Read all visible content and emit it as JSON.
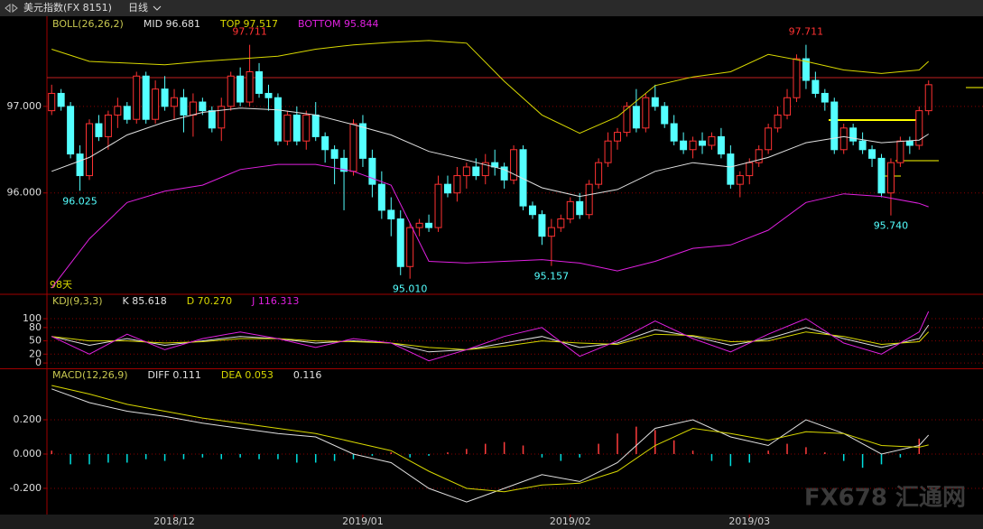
{
  "header": {
    "symbol": "美元指数(FX 8151)",
    "period": "日线"
  },
  "watermark": "FX678 汇通网",
  "chart_data": [
    {
      "type": "candlestick",
      "indicator": "BOLL(26,26,2)",
      "note": "98天",
      "xlim": [
        -0.5,
        93.6
      ],
      "ylim": [
        94.84,
        98.02
      ],
      "yticks": [
        {
          "value": 97,
          "label": "97.000"
        },
        {
          "value": 96,
          "label": "96.000"
        }
      ],
      "up_color": "#ff3232",
      "down_color": "#54ffff",
      "open": [
        96.95,
        97.15,
        97.0,
        96.45,
        96.2,
        96.8,
        96.65,
        96.9,
        97.0,
        96.85,
        97.35,
        96.85,
        97.2,
        97.0,
        97.1,
        96.9,
        97.05,
        96.95,
        96.75,
        97.0,
        97.35,
        97.05,
        97.4,
        97.15,
        97.1,
        96.6,
        96.9,
        96.6,
        96.9,
        96.65,
        96.5,
        96.4,
        96.25,
        96.8,
        96.4,
        96.1,
        95.8,
        95.7,
        95.15,
        95.6,
        95.65,
        95.6,
        96.1,
        96.0,
        96.2,
        96.3,
        96.2,
        96.35,
        96.3,
        96.15,
        96.5,
        95.85,
        95.75,
        95.5,
        95.6,
        95.7,
        95.9,
        95.75,
        96.1,
        96.35,
        96.6,
        96.7,
        97.0,
        96.75,
        97.1,
        97.0,
        96.8,
        96.6,
        96.5,
        96.6,
        96.55,
        96.65,
        96.45,
        96.1,
        96.2,
        96.35,
        96.5,
        96.75,
        96.9,
        97.1,
        97.55,
        97.3,
        97.15,
        97.05,
        96.5,
        96.75,
        96.6,
        96.5,
        96.4,
        96.0,
        96.35,
        96.6,
        96.55,
        96.95
      ],
      "high": [
        97.25,
        97.2,
        97.05,
        96.55,
        96.85,
        96.9,
        96.95,
        97.1,
        97.05,
        97.4,
        97.4,
        97.3,
        97.35,
        97.2,
        97.2,
        97.15,
        97.1,
        97.0,
        97.1,
        97.4,
        97.45,
        97.711,
        97.5,
        97.25,
        97.15,
        96.95,
        97.0,
        96.95,
        97.05,
        96.7,
        96.55,
        96.5,
        96.85,
        96.9,
        96.5,
        96.25,
        95.95,
        95.8,
        95.65,
        95.7,
        95.75,
        96.2,
        96.2,
        96.3,
        96.35,
        96.4,
        96.45,
        96.5,
        96.35,
        96.55,
        96.55,
        95.9,
        95.8,
        95.7,
        95.75,
        95.95,
        96.0,
        96.15,
        96.4,
        96.7,
        96.75,
        97.05,
        97.2,
        97.15,
        97.25,
        97.05,
        96.9,
        96.7,
        96.65,
        96.7,
        96.7,
        96.75,
        96.55,
        96.25,
        96.4,
        96.55,
        96.8,
        97.0,
        97.2,
        97.6,
        97.711,
        97.4,
        97.2,
        97.1,
        96.8,
        96.8,
        96.7,
        96.55,
        96.45,
        96.4,
        96.65,
        96.65,
        97.0,
        97.3
      ],
      "low": [
        96.9,
        96.95,
        96.4,
        96.025,
        96.15,
        96.6,
        96.5,
        96.75,
        96.8,
        96.8,
        96.8,
        96.8,
        96.95,
        96.85,
        96.7,
        96.65,
        96.9,
        96.7,
        96.6,
        96.95,
        97.0,
        97.0,
        97.1,
        96.95,
        96.55,
        96.55,
        96.55,
        96.5,
        96.6,
        96.35,
        96.1,
        95.8,
        96.2,
        96.3,
        95.95,
        95.7,
        95.5,
        95.05,
        95.01,
        95.5,
        95.55,
        95.55,
        95.95,
        95.9,
        96.05,
        96.15,
        96.1,
        96.2,
        96.05,
        96.1,
        95.8,
        95.7,
        95.4,
        95.157,
        95.55,
        95.65,
        95.7,
        95.7,
        96.05,
        96.3,
        96.5,
        96.65,
        96.7,
        96.7,
        96.95,
        96.75,
        96.55,
        96.45,
        96.4,
        96.45,
        96.5,
        96.4,
        96.05,
        95.95,
        96.1,
        96.3,
        96.45,
        96.7,
        96.85,
        97.05,
        97.2,
        97.1,
        96.95,
        96.45,
        96.45,
        96.55,
        96.45,
        96.3,
        95.95,
        95.74,
        96.3,
        96.45,
        96.5,
        96.9
      ],
      "close": [
        97.15,
        97.0,
        96.45,
        96.2,
        96.8,
        96.65,
        96.9,
        97.0,
        96.85,
        97.35,
        96.85,
        97.2,
        97.0,
        97.1,
        96.9,
        97.05,
        96.95,
        96.75,
        97.0,
        97.35,
        97.05,
        97.4,
        97.15,
        97.1,
        96.6,
        96.9,
        96.6,
        96.9,
        96.65,
        96.5,
        96.4,
        96.25,
        96.8,
        96.4,
        96.1,
        95.8,
        95.7,
        95.15,
        95.6,
        95.65,
        95.6,
        96.1,
        96.0,
        96.2,
        96.3,
        96.2,
        96.35,
        96.3,
        96.15,
        96.5,
        95.85,
        95.75,
        95.5,
        95.6,
        95.7,
        95.9,
        95.75,
        96.1,
        96.35,
        96.6,
        96.7,
        97.0,
        96.75,
        97.1,
        97.0,
        96.8,
        96.6,
        96.5,
        96.6,
        96.55,
        96.65,
        96.45,
        96.1,
        96.2,
        96.35,
        96.5,
        96.75,
        96.9,
        97.1,
        97.55,
        97.3,
        97.15,
        97.05,
        96.5,
        96.75,
        96.6,
        96.5,
        96.4,
        96.0,
        96.35,
        96.6,
        96.55,
        96.95,
        97.25
      ],
      "annotations": [
        {
          "label": "96.025",
          "index": 3,
          "field": "low",
          "color": "#54ffff"
        },
        {
          "label": "97.711",
          "index": 21,
          "field": "high",
          "color": "#ff3232"
        },
        {
          "label": "95.010",
          "index": 38,
          "field": "low",
          "color": "#54ffff"
        },
        {
          "label": "95.157",
          "index": 53,
          "field": "low",
          "color": "#54ffff"
        },
        {
          "label": "97.711",
          "index": 80,
          "field": "high",
          "color": "#ff3232"
        },
        {
          "label": "95.740",
          "index": 89,
          "field": "low",
          "color": "#54ffff"
        }
      ],
      "series": [
        {
          "name": "MID 96.681",
          "color": "#e0e0e0",
          "x": [
            0,
            4,
            8,
            12,
            16,
            20,
            24,
            28,
            32,
            36,
            40,
            44,
            48,
            52,
            56,
            60,
            64,
            68,
            72,
            76,
            80,
            84,
            88,
            92,
            93
          ],
          "values": [
            96.25,
            96.41,
            96.67,
            96.82,
            96.93,
            96.98,
            96.96,
            96.9,
            96.79,
            96.67,
            96.48,
            96.38,
            96.27,
            96.06,
            95.96,
            96.04,
            96.25,
            96.35,
            96.3,
            96.41,
            96.58,
            96.65,
            96.58,
            96.61,
            96.68
          ]
        },
        {
          "name": "TOP 97.517",
          "color": "#d8d800",
          "x": [
            0,
            4,
            8,
            12,
            16,
            20,
            24,
            28,
            32,
            36,
            40,
            44,
            48,
            52,
            56,
            60,
            64,
            68,
            72,
            76,
            80,
            84,
            88,
            92,
            93
          ],
          "values": [
            97.66,
            97.52,
            97.5,
            97.48,
            97.52,
            97.55,
            97.58,
            97.66,
            97.71,
            97.74,
            97.76,
            97.73,
            97.29,
            96.9,
            96.69,
            96.88,
            97.24,
            97.34,
            97.4,
            97.6,
            97.52,
            97.42,
            97.38,
            97.42,
            97.52
          ]
        },
        {
          "name": "BOTTOM 95.844",
          "color": "#e020e0",
          "x": [
            0,
            4,
            8,
            12,
            16,
            20,
            24,
            28,
            32,
            36,
            40,
            44,
            48,
            52,
            56,
            60,
            64,
            68,
            72,
            76,
            80,
            84,
            88,
            92,
            93
          ],
          "values": [
            94.9,
            95.47,
            95.89,
            96.02,
            96.09,
            96.27,
            96.33,
            96.33,
            96.25,
            96.09,
            95.21,
            95.19,
            95.21,
            95.23,
            95.19,
            95.1,
            95.21,
            95.36,
            95.4,
            95.57,
            95.89,
            95.99,
            95.96,
            95.88,
            95.84
          ]
        }
      ]
    },
    {
      "type": "line",
      "indicator": "KDJ(9,3,3)",
      "xlim": [
        -0.5,
        93.6
      ],
      "ylim": [
        -12,
        153
      ],
      "yticks": [
        100,
        80,
        50,
        20,
        0
      ],
      "series": [
        {
          "name": "K 85.618",
          "color": "#e0e0e0",
          "x": [
            0,
            4,
            8,
            12,
            16,
            20,
            24,
            28,
            32,
            36,
            40,
            44,
            48,
            52,
            56,
            60,
            64,
            68,
            72,
            76,
            80,
            84,
            88,
            92,
            93
          ],
          "values": [
            60,
            40,
            55,
            40,
            50,
            60,
            55,
            45,
            50,
            45,
            25,
            30,
            45,
            60,
            35,
            45,
            75,
            60,
            40,
            55,
            80,
            55,
            35,
            55,
            85.618
          ]
        },
        {
          "name": "D 70.270",
          "color": "#d8d800",
          "x": [
            0,
            4,
            8,
            12,
            16,
            20,
            24,
            28,
            32,
            36,
            40,
            44,
            48,
            52,
            56,
            60,
            64,
            68,
            72,
            76,
            80,
            84,
            88,
            92,
            93
          ],
          "values": [
            60,
            50,
            50,
            45,
            48,
            55,
            55,
            50,
            48,
            45,
            35,
            30,
            38,
            50,
            45,
            42,
            65,
            62,
            48,
            50,
            70,
            60,
            42,
            48,
            70.27
          ]
        },
        {
          "name": "J 116.313",
          "color": "#e020e0",
          "x": [
            0,
            4,
            8,
            12,
            16,
            20,
            24,
            28,
            32,
            36,
            40,
            44,
            48,
            52,
            56,
            60,
            64,
            68,
            72,
            76,
            80,
            84,
            88,
            92,
            93
          ],
          "values": [
            60,
            20,
            65,
            30,
            55,
            70,
            55,
            35,
            55,
            45,
            5,
            30,
            60,
            80,
            15,
            50,
            95,
            55,
            25,
            65,
            100,
            45,
            20,
            70,
            116.313
          ]
        }
      ]
    },
    {
      "type": "combo",
      "indicator": "MACD(12,26,9)",
      "xlim": [
        -0.5,
        93.6
      ],
      "ylim": [
        -0.353,
        0.495
      ],
      "yticks": [
        {
          "value": 0.2,
          "label": "0.200"
        },
        {
          "value": 0,
          "label": "0.000"
        },
        {
          "value": -0.2,
          "label": "-0.200"
        }
      ],
      "xticks": [
        {
          "value": 13,
          "label": "2018/12"
        },
        {
          "value": 33,
          "label": "2019/01"
        },
        {
          "value": 55,
          "label": "2019/02"
        },
        {
          "value": 74,
          "label": "2019/03"
        }
      ],
      "series": [
        {
          "name": "DIFF 0.111",
          "color": "#e0e0e0",
          "x": [
            0,
            4,
            8,
            12,
            16,
            20,
            24,
            28,
            32,
            36,
            40,
            44,
            48,
            52,
            56,
            60,
            64,
            68,
            72,
            76,
            80,
            84,
            88,
            92,
            93
          ],
          "values": [
            0.38,
            0.3,
            0.25,
            0.22,
            0.18,
            0.15,
            0.12,
            0.1,
            0.0,
            -0.05,
            -0.2,
            -0.28,
            -0.2,
            -0.12,
            -0.16,
            -0.05,
            0.15,
            0.2,
            0.1,
            0.05,
            0.2,
            0.12,
            0.0,
            0.05,
            0.111
          ]
        },
        {
          "name": "DEA 0.053",
          "color": "#d8d800",
          "x": [
            0,
            4,
            8,
            12,
            16,
            20,
            24,
            28,
            32,
            36,
            40,
            44,
            48,
            52,
            56,
            60,
            64,
            68,
            72,
            76,
            80,
            84,
            88,
            92,
            93
          ],
          "values": [
            0.4,
            0.35,
            0.29,
            0.25,
            0.21,
            0.18,
            0.15,
            0.12,
            0.07,
            0.02,
            -0.1,
            -0.2,
            -0.22,
            -0.18,
            -0.17,
            -0.1,
            0.05,
            0.15,
            0.12,
            0.08,
            0.13,
            0.12,
            0.05,
            0.04,
            0.053
          ]
        }
      ],
      "histogram": {
        "name": "0.116",
        "up_color": "#ff3c3c",
        "down_color": "#00dede",
        "x": [
          0,
          2,
          4,
          6,
          8,
          10,
          12,
          14,
          16,
          18,
          20,
          22,
          24,
          26,
          28,
          30,
          32,
          34,
          36,
          38,
          40,
          42,
          44,
          46,
          48,
          50,
          52,
          54,
          56,
          58,
          60,
          62,
          64,
          66,
          68,
          70,
          72,
          74,
          76,
          78,
          80,
          82,
          84,
          86,
          88,
          90,
          92
        ],
        "values": [
          0.02,
          -0.06,
          -0.06,
          -0.05,
          -0.05,
          -0.03,
          -0.04,
          -0.03,
          -0.02,
          -0.03,
          -0.02,
          -0.03,
          -0.03,
          -0.05,
          -0.05,
          -0.04,
          -0.03,
          -0.01,
          0.01,
          -0.02,
          -0.01,
          0.01,
          0.03,
          0.06,
          0.07,
          0.05,
          -0.02,
          -0.04,
          -0.02,
          0.06,
          0.12,
          0.16,
          0.14,
          0.08,
          0.02,
          -0.04,
          -0.07,
          -0.05,
          0.02,
          0.06,
          0.04,
          0.01,
          -0.04,
          -0.08,
          -0.06,
          -0.02,
          0.09
        ]
      }
    }
  ]
}
